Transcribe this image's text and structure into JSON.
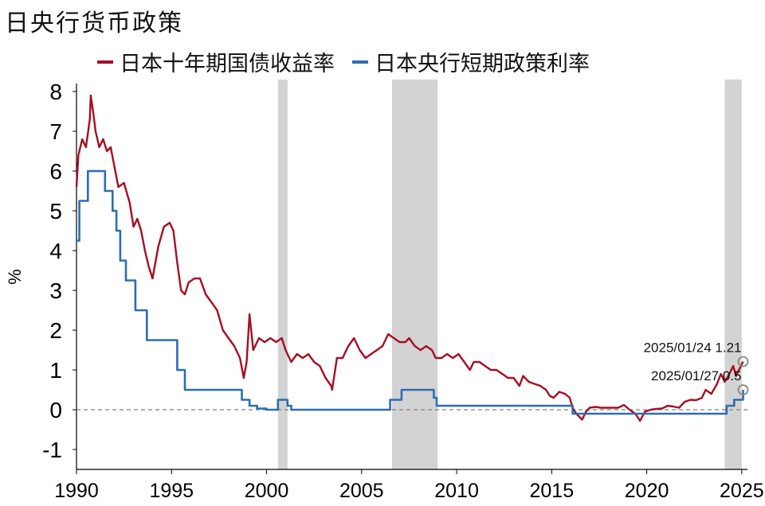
{
  "title": "日央行货币政策",
  "colors": {
    "jgb": "#a50f22",
    "policy": "#2e6db0",
    "shade": "#d3d3d3",
    "zero": "#7f7f7f"
  },
  "chart_data": {
    "type": "line",
    "xlabel": "",
    "ylabel": "%",
    "xlim": [
      1990,
      2025.3
    ],
    "ylim": [
      -1.5,
      8.3
    ],
    "x_ticks": [
      "1990",
      "1995",
      "2000",
      "2005",
      "2010",
      "2015",
      "2020",
      "2025"
    ],
    "y_ticks": [
      "8",
      "7",
      "6",
      "5",
      "4",
      "3",
      "2",
      "1",
      "0",
      "-1"
    ],
    "shaded_periods": [
      [
        2000.6,
        2001.1
      ],
      [
        2006.6,
        2009.0
      ],
      [
        2024.1,
        2025.0
      ]
    ],
    "zero_line": true,
    "legend_position": "top",
    "series": [
      {
        "name": "日本十年期国债收益率",
        "color": "#a50f22",
        "points": [
          [
            1990.0,
            5.6
          ],
          [
            1990.1,
            6.4
          ],
          [
            1990.3,
            6.8
          ],
          [
            1990.5,
            6.6
          ],
          [
            1990.7,
            7.3
          ],
          [
            1990.75,
            7.9
          ],
          [
            1990.9,
            7.4
          ],
          [
            1991.0,
            7.0
          ],
          [
            1991.2,
            6.6
          ],
          [
            1991.4,
            6.8
          ],
          [
            1991.6,
            6.5
          ],
          [
            1991.8,
            6.6
          ],
          [
            1992.0,
            6.1
          ],
          [
            1992.2,
            5.6
          ],
          [
            1992.5,
            5.7
          ],
          [
            1992.8,
            5.2
          ],
          [
            1993.0,
            4.6
          ],
          [
            1993.2,
            4.8
          ],
          [
            1993.4,
            4.5
          ],
          [
            1993.6,
            4.0
          ],
          [
            1993.8,
            3.6
          ],
          [
            1994.0,
            3.3
          ],
          [
            1994.3,
            4.1
          ],
          [
            1994.6,
            4.6
          ],
          [
            1994.9,
            4.7
          ],
          [
            1995.1,
            4.5
          ],
          [
            1995.3,
            3.7
          ],
          [
            1995.5,
            3.0
          ],
          [
            1995.7,
            2.9
          ],
          [
            1995.9,
            3.2
          ],
          [
            1996.2,
            3.3
          ],
          [
            1996.5,
            3.3
          ],
          [
            1996.8,
            2.9
          ],
          [
            1997.1,
            2.7
          ],
          [
            1997.4,
            2.5
          ],
          [
            1997.7,
            2.0
          ],
          [
            1998.0,
            1.8
          ],
          [
            1998.3,
            1.6
          ],
          [
            1998.6,
            1.3
          ],
          [
            1998.8,
            0.8
          ],
          [
            1998.95,
            1.2
          ],
          [
            1999.1,
            2.4
          ],
          [
            1999.3,
            1.5
          ],
          [
            1999.6,
            1.8
          ],
          [
            1999.9,
            1.7
          ],
          [
            2000.2,
            1.8
          ],
          [
            2000.5,
            1.7
          ],
          [
            2000.8,
            1.8
          ],
          [
            2001.0,
            1.5
          ],
          [
            2001.3,
            1.2
          ],
          [
            2001.6,
            1.4
          ],
          [
            2001.9,
            1.3
          ],
          [
            2002.2,
            1.4
          ],
          [
            2002.5,
            1.2
          ],
          [
            2002.8,
            1.1
          ],
          [
            2003.1,
            0.8
          ],
          [
            2003.4,
            0.6
          ],
          [
            2003.45,
            0.5
          ],
          [
            2003.7,
            1.3
          ],
          [
            2004.0,
            1.3
          ],
          [
            2004.3,
            1.6
          ],
          [
            2004.6,
            1.8
          ],
          [
            2004.9,
            1.5
          ],
          [
            2005.2,
            1.3
          ],
          [
            2005.5,
            1.4
          ],
          [
            2005.8,
            1.5
          ],
          [
            2006.1,
            1.6
          ],
          [
            2006.4,
            1.9
          ],
          [
            2006.7,
            1.8
          ],
          [
            2007.0,
            1.7
          ],
          [
            2007.3,
            1.7
          ],
          [
            2007.5,
            1.8
          ],
          [
            2007.8,
            1.6
          ],
          [
            2008.1,
            1.5
          ],
          [
            2008.4,
            1.6
          ],
          [
            2008.7,
            1.5
          ],
          [
            2008.9,
            1.3
          ],
          [
            2009.2,
            1.3
          ],
          [
            2009.5,
            1.4
          ],
          [
            2009.8,
            1.3
          ],
          [
            2010.1,
            1.4
          ],
          [
            2010.4,
            1.2
          ],
          [
            2010.7,
            1.0
          ],
          [
            2010.9,
            1.2
          ],
          [
            2011.2,
            1.2
          ],
          [
            2011.5,
            1.1
          ],
          [
            2011.8,
            1.0
          ],
          [
            2012.1,
            1.0
          ],
          [
            2012.4,
            0.9
          ],
          [
            2012.7,
            0.8
          ],
          [
            2013.0,
            0.8
          ],
          [
            2013.3,
            0.6
          ],
          [
            2013.5,
            0.85
          ],
          [
            2013.8,
            0.7
          ],
          [
            2014.1,
            0.65
          ],
          [
            2014.4,
            0.6
          ],
          [
            2014.7,
            0.5
          ],
          [
            2014.9,
            0.35
          ],
          [
            2015.1,
            0.3
          ],
          [
            2015.4,
            0.45
          ],
          [
            2015.7,
            0.4
          ],
          [
            2015.95,
            0.3
          ],
          [
            2016.1,
            0.05
          ],
          [
            2016.3,
            -0.1
          ],
          [
            2016.6,
            -0.25
          ],
          [
            2016.8,
            -0.05
          ],
          [
            2017.0,
            0.05
          ],
          [
            2017.3,
            0.07
          ],
          [
            2017.6,
            0.05
          ],
          [
            2017.9,
            0.05
          ],
          [
            2018.2,
            0.05
          ],
          [
            2018.5,
            0.05
          ],
          [
            2018.8,
            0.12
          ],
          [
            2019.1,
            0.0
          ],
          [
            2019.4,
            -0.1
          ],
          [
            2019.65,
            -0.28
          ],
          [
            2019.9,
            -0.05
          ],
          [
            2020.2,
            0.0
          ],
          [
            2020.5,
            0.02
          ],
          [
            2020.8,
            0.03
          ],
          [
            2021.1,
            0.1
          ],
          [
            2021.4,
            0.08
          ],
          [
            2021.7,
            0.05
          ],
          [
            2022.0,
            0.2
          ],
          [
            2022.3,
            0.25
          ],
          [
            2022.6,
            0.24
          ],
          [
            2022.9,
            0.3
          ],
          [
            2023.1,
            0.5
          ],
          [
            2023.4,
            0.4
          ],
          [
            2023.7,
            0.65
          ],
          [
            2023.9,
            0.9
          ],
          [
            2024.1,
            0.7
          ],
          [
            2024.35,
            0.9
          ],
          [
            2024.55,
            1.1
          ],
          [
            2024.7,
            0.85
          ],
          [
            2024.85,
            1.0
          ],
          [
            2025.07,
            1.21
          ]
        ]
      },
      {
        "name": "日本央行短期政策利率",
        "color": "#2e6db0",
        "points": [
          [
            1990.0,
            4.25
          ],
          [
            1990.15,
            4.25
          ],
          [
            1990.15,
            5.25
          ],
          [
            1990.6,
            5.25
          ],
          [
            1990.6,
            6.0
          ],
          [
            1991.5,
            6.0
          ],
          [
            1991.5,
            5.5
          ],
          [
            1991.9,
            5.5
          ],
          [
            1991.9,
            5.0
          ],
          [
            1992.1,
            5.0
          ],
          [
            1992.1,
            4.5
          ],
          [
            1992.3,
            4.5
          ],
          [
            1992.3,
            3.75
          ],
          [
            1992.6,
            3.75
          ],
          [
            1992.6,
            3.25
          ],
          [
            1993.1,
            3.25
          ],
          [
            1993.1,
            2.5
          ],
          [
            1993.7,
            2.5
          ],
          [
            1993.7,
            1.75
          ],
          [
            1995.3,
            1.75
          ],
          [
            1995.3,
            1.0
          ],
          [
            1995.7,
            1.0
          ],
          [
            1995.7,
            0.5
          ],
          [
            1998.7,
            0.5
          ],
          [
            1998.7,
            0.25
          ],
          [
            1999.1,
            0.25
          ],
          [
            1999.1,
            0.1
          ],
          [
            1999.5,
            0.1
          ],
          [
            1999.5,
            0.03
          ],
          [
            2000.0,
            0.03
          ],
          [
            2000.0,
            0.0
          ],
          [
            2000.6,
            0.0
          ],
          [
            2000.6,
            0.25
          ],
          [
            2001.1,
            0.25
          ],
          [
            2001.1,
            0.1
          ],
          [
            2001.3,
            0.1
          ],
          [
            2001.3,
            0.0
          ],
          [
            2006.5,
            0.0
          ],
          [
            2006.5,
            0.25
          ],
          [
            2007.1,
            0.25
          ],
          [
            2007.1,
            0.5
          ],
          [
            2008.8,
            0.5
          ],
          [
            2008.8,
            0.3
          ],
          [
            2008.95,
            0.3
          ],
          [
            2008.95,
            0.1
          ],
          [
            2016.1,
            0.1
          ],
          [
            2016.1,
            -0.1
          ],
          [
            2024.2,
            -0.1
          ],
          [
            2024.2,
            0.1
          ],
          [
            2024.6,
            0.1
          ],
          [
            2024.6,
            0.25
          ],
          [
            2025.07,
            0.25
          ],
          [
            2025.07,
            0.5
          ]
        ]
      }
    ],
    "annotations": [
      {
        "text": "2025/01/24  1.21",
        "x": 2025.07,
        "y": 1.21
      },
      {
        "text": "2025/01/27 0.5",
        "x": 2025.07,
        "y": 0.5
      }
    ]
  }
}
